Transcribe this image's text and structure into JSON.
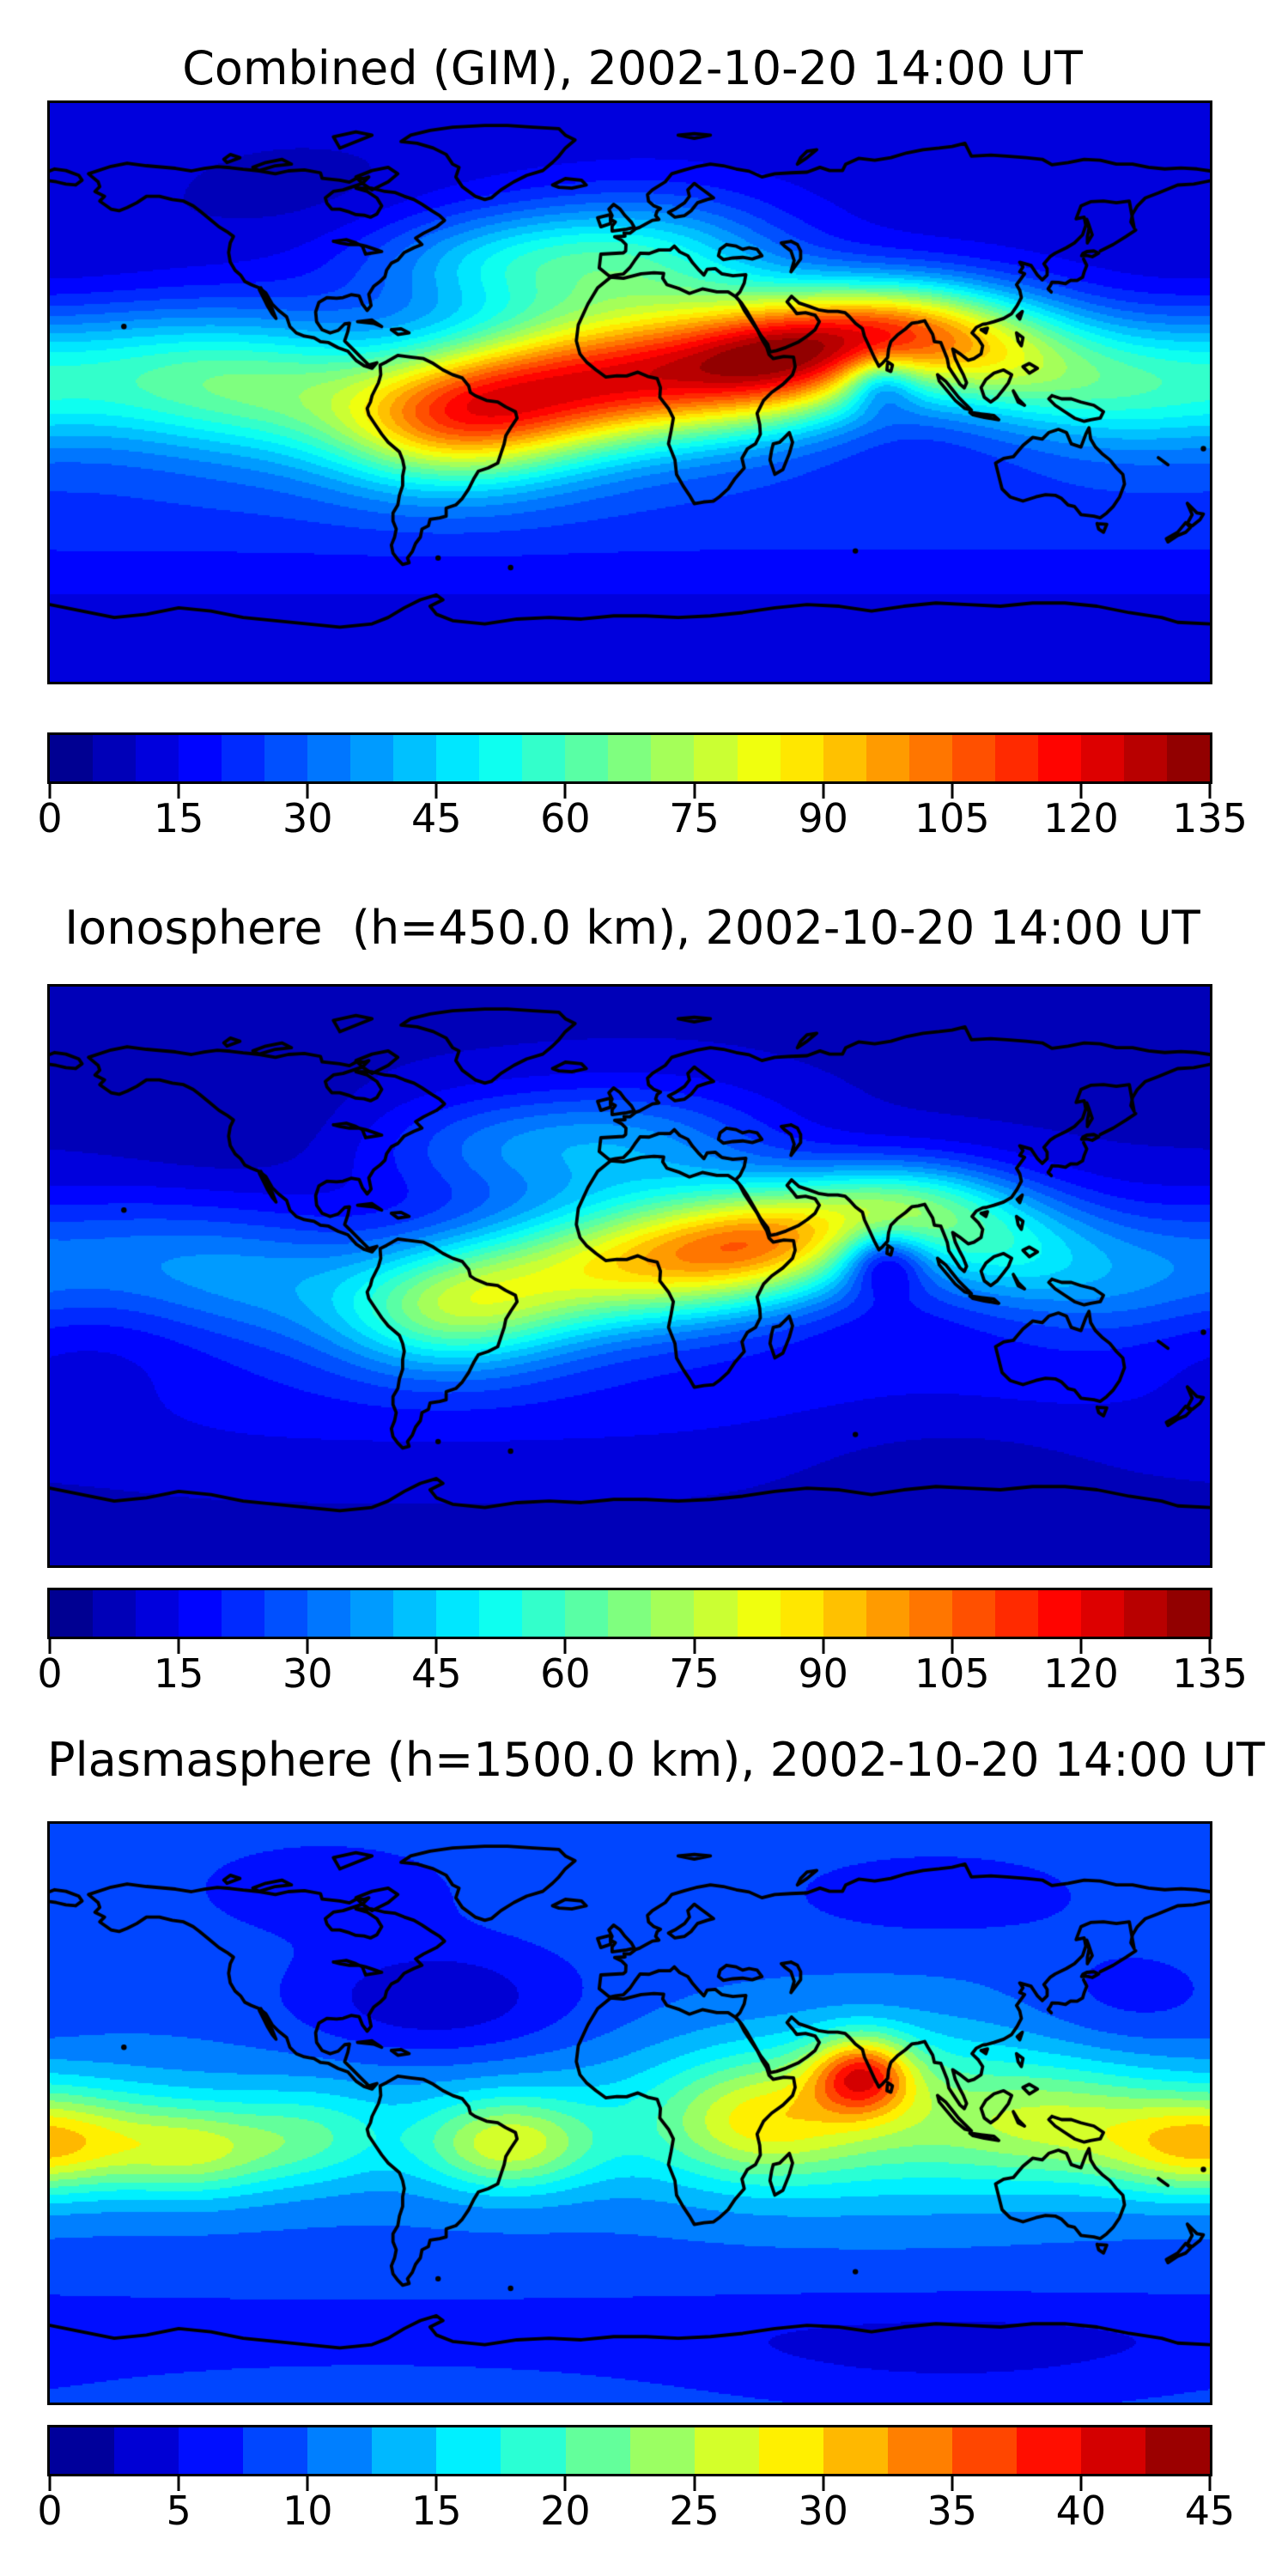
{
  "figure": {
    "background": "#ffffff",
    "text_color": "#000000",
    "coastline_color": "#000000",
    "colormap": "jet"
  },
  "chart_data": [
    {
      "type": "filled_contour_map",
      "title": "Combined (GIM), 2002-10-20 14:00 UT",
      "projection": "equirectangular",
      "lon_range": [
        -180,
        180
      ],
      "lat_range": [
        -90,
        90
      ],
      "colormap": "jet",
      "levels": {
        "min": 0,
        "max": 135,
        "step": 5,
        "n_segments": 27
      },
      "colorbar_ticks": [
        0,
        15,
        30,
        45,
        60,
        75,
        90,
        105,
        120,
        135
      ],
      "grid": false,
      "field": {
        "base": 12,
        "blobs": [
          {
            "lon": 12,
            "lat": 6,
            "amp": 88,
            "sx": 34,
            "sy": 15
          },
          {
            "lon": -35,
            "lat": -2,
            "amp": 55,
            "sx": 28,
            "sy": 15
          },
          {
            "lon": -60,
            "lat": -10,
            "amp": 48,
            "sx": 25,
            "sy": 14
          },
          {
            "lon": -105,
            "lat": 0,
            "amp": 32,
            "sx": 30,
            "sy": 16
          },
          {
            "lon": -150,
            "lat": 5,
            "amp": 35,
            "sx": 35,
            "sy": 16
          },
          {
            "lon": 50,
            "lat": 12,
            "amp": 62,
            "sx": 22,
            "sy": 13
          },
          {
            "lon": 82,
            "lat": 20,
            "amp": 60,
            "sx": 22,
            "sy": 11
          },
          {
            "lon": 112,
            "lat": 12,
            "amp": 45,
            "sx": 22,
            "sy": 13
          },
          {
            "lon": 150,
            "lat": 2,
            "amp": 35,
            "sx": 28,
            "sy": 15
          },
          {
            "lon": 78,
            "lat": 3,
            "amp": -28,
            "sx": 8,
            "sy": 6
          },
          {
            "zonal": true,
            "lat": -38,
            "amp": 10,
            "sy": 16
          },
          {
            "lon": -38,
            "lat": 40,
            "amp": 30,
            "sx": 32,
            "sy": 12
          },
          {
            "lon": 8,
            "lat": 42,
            "amp": 30,
            "sx": 30,
            "sy": 14
          },
          {
            "lon": -175,
            "lat": 38,
            "amp": -3,
            "sx": 30,
            "sy": 14
          },
          {
            "lon": -100,
            "lat": 62,
            "amp": -4,
            "sx": 30,
            "sy": 12
          }
        ]
      }
    },
    {
      "type": "filled_contour_map",
      "title": "Ionosphere  (h=450.0 km), 2002-10-20 14:00 UT",
      "projection": "equirectangular",
      "lon_range": [
        -180,
        180
      ],
      "lat_range": [
        -90,
        90
      ],
      "colormap": "jet",
      "levels": {
        "min": 0,
        "max": 135,
        "step": 5,
        "n_segments": 27
      },
      "colorbar_ticks": [
        0,
        15,
        30,
        45,
        60,
        75,
        90,
        105,
        120,
        135
      ],
      "grid": false,
      "field": {
        "base": 9,
        "blobs": [
          {
            "lon": 14,
            "lat": 6,
            "amp": 70,
            "sx": 30,
            "sy": 14
          },
          {
            "lon": -35,
            "lat": -3,
            "amp": 40,
            "sx": 28,
            "sy": 14
          },
          {
            "lon": -60,
            "lat": -12,
            "amp": 35,
            "sx": 24,
            "sy": 13
          },
          {
            "lon": -110,
            "lat": -2,
            "amp": 20,
            "sx": 28,
            "sy": 15
          },
          {
            "lon": -155,
            "lat": 5,
            "amp": 18,
            "sx": 30,
            "sy": 15
          },
          {
            "lon": 48,
            "lat": 12,
            "amp": 48,
            "sx": 22,
            "sy": 12
          },
          {
            "lon": 83,
            "lat": 22,
            "amp": 42,
            "sx": 22,
            "sy": 10
          },
          {
            "lon": 112,
            "lat": 10,
            "amp": 32,
            "sx": 22,
            "sy": 13
          },
          {
            "lon": 150,
            "lat": 0,
            "amp": 22,
            "sx": 28,
            "sy": 15
          },
          {
            "lon": 79,
            "lat": 5,
            "amp": -30,
            "sx": 9,
            "sy": 7
          },
          {
            "zonal": true,
            "lat": -38,
            "amp": 8,
            "sy": 16
          },
          {
            "lon": -38,
            "lat": 40,
            "amp": 20,
            "sx": 32,
            "sy": 12
          },
          {
            "lon": 8,
            "lat": 42,
            "amp": 18,
            "sx": 30,
            "sy": 13
          },
          {
            "lon": -170,
            "lat": -25,
            "amp": -5,
            "sx": 28,
            "sy": 20
          },
          {
            "lon": 100,
            "lat": -52,
            "amp": -5,
            "sx": 40,
            "sy": 12
          },
          {
            "lon": -120,
            "lat": 48,
            "amp": -4,
            "sx": 28,
            "sy": 14
          }
        ]
      }
    },
    {
      "type": "filled_contour_map",
      "title": "Plasmasphere (h=1500.0 km), 2002-10-20 14:00 UT",
      "projection": "equirectangular",
      "lon_range": [
        -180,
        180
      ],
      "lat_range": [
        -90,
        90
      ],
      "colormap": "jet",
      "levels": {
        "min": 0,
        "max": 45,
        "step": 2.5,
        "n_segments": 18
      },
      "colorbar_ticks": [
        0,
        5,
        10,
        15,
        20,
        25,
        30,
        35,
        40,
        45
      ],
      "grid": false,
      "field": {
        "base": 9,
        "blobs": [
          {
            "lon": 72,
            "lat": 12,
            "amp": 20,
            "sx": 11,
            "sy": 8.5
          },
          {
            "lon": 80,
            "lat": 2,
            "amp": 9,
            "sx": 50,
            "sy": 20
          },
          {
            "lon": 40,
            "lat": -2,
            "amp": 9,
            "sx": 20,
            "sy": 13
          },
          {
            "lon": -135,
            "lat": -12,
            "amp": 11,
            "sx": 18,
            "sy": 10
          },
          {
            "lon": -100,
            "lat": -8,
            "amp": 6,
            "sx": 16,
            "sy": 10
          },
          {
            "lon": -38,
            "lat": -10,
            "amp": 13,
            "sx": 18,
            "sy": 10
          },
          {
            "lon": -172,
            "lat": -8,
            "amp": 9,
            "sx": 20,
            "sy": 11
          },
          {
            "lon": 138,
            "lat": -4,
            "amp": 7,
            "sx": 24,
            "sy": 12
          },
          {
            "lon": 172,
            "lat": -12,
            "amp": 8,
            "sx": 18,
            "sy": 10
          },
          {
            "lon": -60,
            "lat": 35,
            "amp": -6.2,
            "sx": 30,
            "sy": 13
          },
          {
            "lon": -95,
            "lat": 70,
            "amp": -3.5,
            "sx": 28,
            "sy": 10
          },
          {
            "lon": 95,
            "lat": 68,
            "amp": -3,
            "sx": 35,
            "sy": 10
          },
          {
            "lon": 155,
            "lat": 35,
            "amp": -3,
            "sx": 22,
            "sy": 12
          },
          {
            "zonal": true,
            "lat": -5,
            "amp": 5,
            "sy": 16
          },
          {
            "zonal": true,
            "lat": -68,
            "amp": -2.5,
            "sy": 10
          },
          {
            "lon": 100,
            "lat": -78,
            "amp": -3,
            "sx": 60,
            "sy": 12
          }
        ]
      }
    }
  ]
}
